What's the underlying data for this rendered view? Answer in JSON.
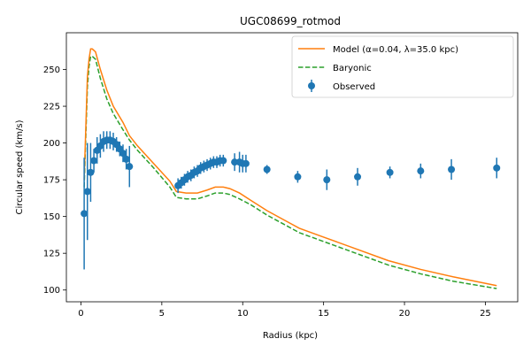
{
  "chart_data": {
    "type": "line",
    "title": "UGC08699_rotmod",
    "xlabel": "Radius (kpc)",
    "ylabel": "Circular speed (km/s)",
    "xlim": [
      -0.9,
      27.0
    ],
    "ylim": [
      92,
      275
    ],
    "xticks": [
      0,
      5,
      10,
      15,
      20,
      25
    ],
    "yticks": [
      100,
      125,
      150,
      175,
      200,
      225,
      250
    ],
    "grid": false,
    "legend_position": "top-right",
    "series": [
      {
        "name": "Model (α=0.04, λ=35.0 kpc)",
        "kind": "line",
        "color": "#ff7f0e",
        "x": [
          0.2,
          0.4,
          0.5,
          0.6,
          0.7,
          0.9,
          1.2,
          1.6,
          2.0,
          2.6,
          3.0,
          3.5,
          4.5,
          5.5,
          5.9,
          6.5,
          7.2,
          7.8,
          8.3,
          8.8,
          9.2,
          9.8,
          10.5,
          11.5,
          12.5,
          13.5,
          15.0,
          17.0,
          19.0,
          21.0,
          23.0,
          25.7
        ],
        "y": [
          175,
          245,
          257,
          264,
          264,
          262,
          250,
          236,
          225,
          214,
          205,
          198,
          186,
          174,
          167,
          166,
          166,
          168,
          170,
          170,
          169,
          166,
          161,
          154,
          148,
          142,
          136,
          128,
          120,
          114,
          109,
          103
        ]
      },
      {
        "name": "Baryonic",
        "kind": "dashed-line",
        "color": "#2ca02c",
        "x": [
          0.2,
          0.4,
          0.5,
          0.6,
          0.7,
          0.9,
          1.2,
          1.6,
          2.0,
          2.6,
          3.0,
          3.5,
          4.5,
          5.5,
          5.9,
          6.5,
          7.2,
          7.8,
          8.3,
          8.8,
          9.2,
          9.8,
          10.5,
          11.5,
          12.5,
          13.5,
          15.0,
          17.0,
          19.0,
          21.0,
          23.0,
          25.7
        ],
        "y": [
          170,
          238,
          252,
          259,
          259,
          257,
          244,
          230,
          220,
          209,
          202,
          195,
          183,
          170,
          163,
          162,
          162,
          164,
          166,
          166,
          165,
          162,
          158,
          151,
          145,
          139,
          133,
          125,
          117,
          111,
          106,
          101
        ]
      },
      {
        "name": "Observed",
        "kind": "errorbar",
        "color": "#1f77b4",
        "x": [
          0.2,
          0.4,
          0.6,
          0.8,
          1.0,
          1.2,
          1.4,
          1.6,
          1.8,
          2.0,
          2.2,
          2.4,
          2.6,
          2.8,
          3.0,
          6.0,
          6.2,
          6.4,
          6.6,
          6.8,
          7.0,
          7.2,
          7.4,
          7.6,
          7.8,
          8.0,
          8.2,
          8.4,
          8.6,
          8.8,
          9.5,
          9.8,
          10.0,
          10.2,
          11.5,
          13.4,
          15.2,
          17.1,
          19.1,
          21.0,
          22.9,
          25.7
        ],
        "y": [
          152,
          167,
          180,
          188,
          195,
          198,
          201,
          202,
          202,
          201,
          199,
          196,
          193,
          189,
          184,
          171,
          173,
          175,
          177,
          178,
          180,
          181,
          183,
          184,
          185,
          186,
          187,
          187,
          188,
          188,
          187,
          187,
          186,
          186,
          182,
          177,
          175,
          177,
          180,
          181,
          182,
          183
        ],
        "yerr": [
          38,
          33,
          20,
          8,
          9,
          8,
          7,
          6,
          6,
          6,
          5,
          5,
          6,
          7,
          14,
          5,
          4,
          4,
          4,
          4,
          4,
          4,
          4,
          4,
          4,
          4,
          4,
          4,
          4,
          4,
          6,
          7,
          6,
          6,
          3,
          4,
          7,
          6,
          4,
          5,
          7,
          7
        ]
      }
    ]
  }
}
